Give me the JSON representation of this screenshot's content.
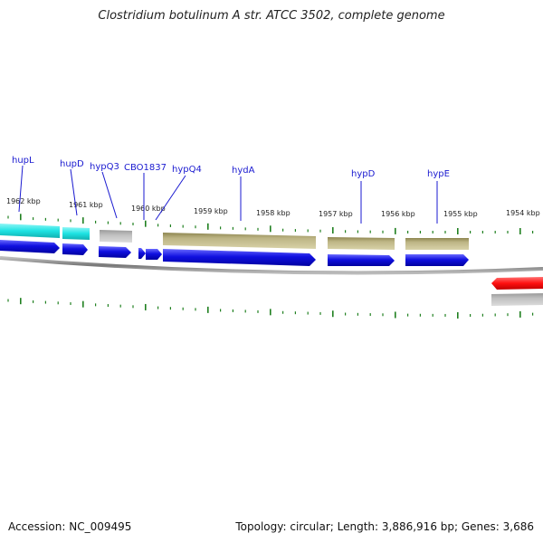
{
  "title": "Clostridium botulinum A str. ATCC 3502, complete genome",
  "footer": {
    "accession": "Accession: NC_009495",
    "stats": "Topology: circular; Length: 3,886,916 bp; Genes: 3,686"
  },
  "scale": {
    "unit": "kbp",
    "ticks": [
      {
        "kbp": 1962,
        "label": "1962 kbp"
      },
      {
        "kbp": 1961,
        "label": "1961 kbp"
      },
      {
        "kbp": 1960,
        "label": "1960 kbp"
      },
      {
        "kbp": 1959,
        "label": "1959 kbp"
      },
      {
        "kbp": 1958,
        "label": "1958 kbp"
      },
      {
        "kbp": 1957,
        "label": "1957 kbp"
      },
      {
        "kbp": 1956,
        "label": "1956 kbp"
      },
      {
        "kbp": 1955,
        "label": "1955 kbp"
      },
      {
        "kbp": 1954,
        "label": "1954 kbp"
      }
    ]
  },
  "gene_labels": [
    "hupL",
    "hupD",
    "hypQ3",
    "CBO1837",
    "hypQ4",
    "hydA",
    "hypD",
    "hypE"
  ],
  "colors": {
    "cds": "#1010e0",
    "cyan_feature": "#1ee3e3",
    "olive_feature": "#b8b080",
    "grey_feature": "#b8b8b8",
    "red_feature": "#ff1010",
    "tick": "#208020",
    "backbone": "#888888",
    "label": "#1a1ad0"
  }
}
